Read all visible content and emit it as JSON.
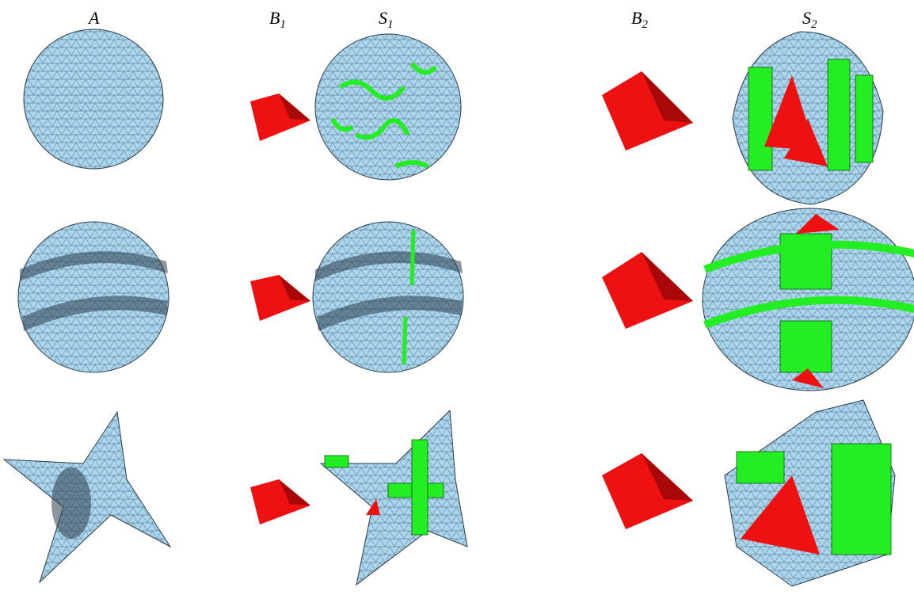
{
  "figure": {
    "columns": [
      {
        "main": "A"
      },
      {
        "main": "B",
        "sub": "1"
      },
      {
        "main": "S",
        "sub": "1"
      },
      {
        "main": "B",
        "sub": "2"
      },
      {
        "main": "S",
        "sub": "2"
      }
    ]
  }
}
